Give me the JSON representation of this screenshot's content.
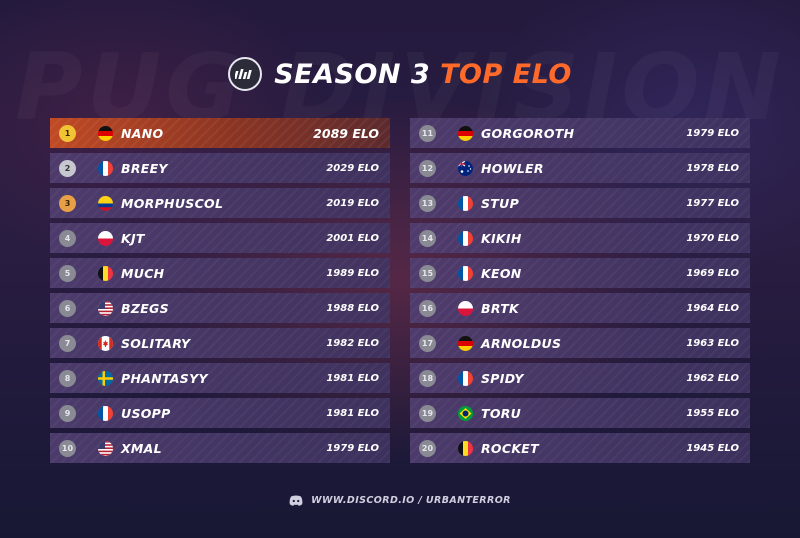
{
  "background_word": "PUG DIVISION",
  "header": {
    "title_white": "SEASON 3",
    "title_accent": "TOP ELO",
    "logo_icon": "urban-terror-logo-icon",
    "accent_color": "#ff6a2b"
  },
  "players": [
    {
      "rank": "1",
      "name": "NANO",
      "elo": "2089 ELO",
      "flag": "de"
    },
    {
      "rank": "2",
      "name": "BREEY",
      "elo": "2029 ELO",
      "flag": "fr"
    },
    {
      "rank": "3",
      "name": "MORPHUSCOL",
      "elo": "2019 ELO",
      "flag": "co"
    },
    {
      "rank": "4",
      "name": "KJT",
      "elo": "2001 ELO",
      "flag": "pl"
    },
    {
      "rank": "5",
      "name": "MUCH",
      "elo": "1989 ELO",
      "flag": "be"
    },
    {
      "rank": "6",
      "name": "BZEGS",
      "elo": "1988 ELO",
      "flag": "us"
    },
    {
      "rank": "7",
      "name": "SOLITARY",
      "elo": "1982 ELO",
      "flag": "ca"
    },
    {
      "rank": "8",
      "name": "PHANTASYY",
      "elo": "1981 ELO",
      "flag": "se"
    },
    {
      "rank": "9",
      "name": "USOPP",
      "elo": "1981 ELO",
      "flag": "fr"
    },
    {
      "rank": "10",
      "name": "XMAL",
      "elo": "1979 ELO",
      "flag": "us"
    },
    {
      "rank": "11",
      "name": "GORGOROTH",
      "elo": "1979 ELO",
      "flag": "de"
    },
    {
      "rank": "12",
      "name": "HOWLER",
      "elo": "1978 ELO",
      "flag": "au"
    },
    {
      "rank": "13",
      "name": "STUP",
      "elo": "1977 ELO",
      "flag": "fr"
    },
    {
      "rank": "14",
      "name": "KIKIH",
      "elo": "1970 ELO",
      "flag": "fr"
    },
    {
      "rank": "15",
      "name": "KEON",
      "elo": "1969 ELO",
      "flag": "fr"
    },
    {
      "rank": "16",
      "name": "BRTK",
      "elo": "1964 ELO",
      "flag": "pl"
    },
    {
      "rank": "17",
      "name": "ARNOLDUS",
      "elo": "1963 ELO",
      "flag": "de"
    },
    {
      "rank": "18",
      "name": "SPIDY",
      "elo": "1962 ELO",
      "flag": "fr"
    },
    {
      "rank": "19",
      "name": "TORU",
      "elo": "1955 ELO",
      "flag": "br"
    },
    {
      "rank": "20",
      "name": "ROCKET",
      "elo": "1945 ELO",
      "flag": "be"
    }
  ],
  "footer": {
    "icon": "discord-icon",
    "text": "WWW.DISCORD.IO / URBANTERROR"
  }
}
